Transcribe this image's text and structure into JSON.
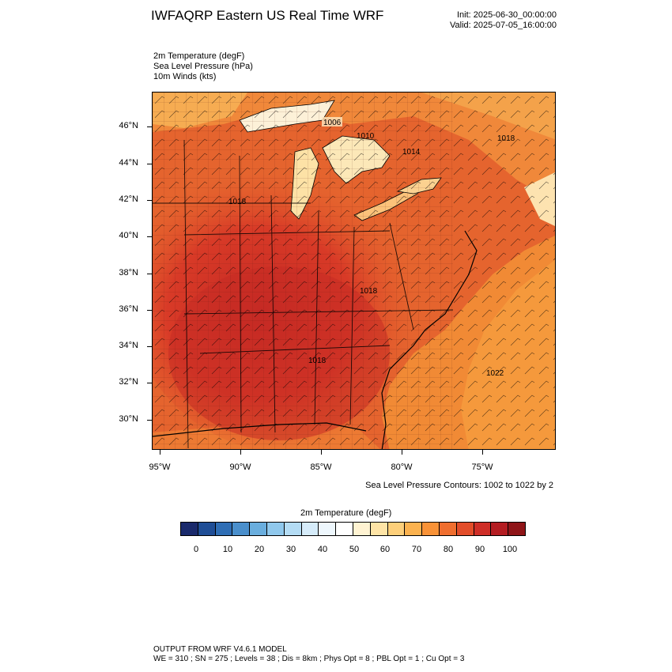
{
  "header": {
    "title": "IWFAQRP Eastern US Real Time WRF",
    "init": "Init: 2025-06-30_00:00:00",
    "valid": "Valid: 2025-07-05_16:00:00"
  },
  "fields": [
    "2m Temperature   (degF)",
    "Sea Level Pressure   (hPa)",
    "10m Winds   (kts)"
  ],
  "map": {
    "lat_labels": [
      "46°N",
      "44°N",
      "42°N",
      "40°N",
      "38°N",
      "36°N",
      "34°N",
      "32°N",
      "30°N"
    ],
    "lon_labels": [
      "95°W",
      "90°W",
      "85°W",
      "80°W",
      "75°W"
    ],
    "isobar_labels": [
      "1006",
      "1010",
      "1014",
      "1018",
      "1018",
      "1018",
      "1018",
      "1022"
    ]
  },
  "contour_note": "Sea Level Pressure Contours: 1002 to 1022 by 2",
  "colorbar": {
    "title": "2m Temperature  (degF)",
    "labels": [
      "0",
      "10",
      "20",
      "30",
      "40",
      "50",
      "60",
      "70",
      "80",
      "90",
      "100"
    ],
    "colors": [
      "#1a2a6c",
      "#1f4e96",
      "#2f6eb5",
      "#4a8fcc",
      "#6aaede",
      "#90c8ec",
      "#b4dcf4",
      "#d6ecfa",
      "#eef7fd",
      "#ffffff",
      "#fff3d2",
      "#fee4a6",
      "#fdcf7a",
      "#fbb24f",
      "#f89237",
      "#ef6e2f",
      "#e24d2a",
      "#ce2e27",
      "#b41d22",
      "#8f1518"
    ]
  },
  "footer": {
    "line1": "OUTPUT FROM WRF V4.6.1 MODEL",
    "line2": "WE = 310 ; SN = 275 ; Levels = 38 ; Dis = 8km ; Phys Opt = 8 ; PBL Opt = 1 ; Cu Opt = 3"
  }
}
